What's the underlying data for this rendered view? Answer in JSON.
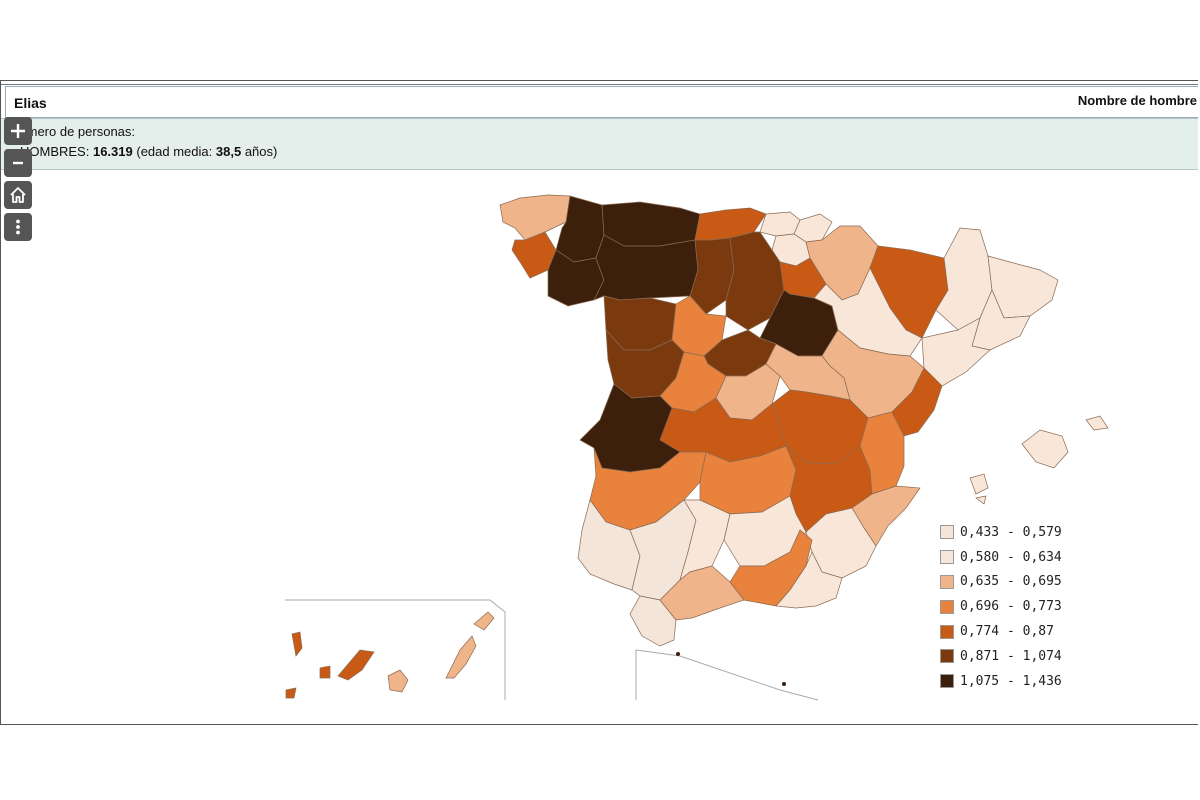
{
  "panel": {
    "title": "Elias",
    "subtitle": "Número de personas:",
    "sex_label": "HOMBRES:",
    "count": "16.319",
    "age_prefix": "(edad media:",
    "age": "38,5",
    "age_suffix": "años)"
  },
  "map": {
    "heading": "Nombre de hombre",
    "controls": {
      "zoom_in": "+",
      "zoom_out": "-",
      "home_icon": "home-icon",
      "more_icon": "more-vertical-icon"
    },
    "legend": [
      {
        "label": "0,433 - 0,579",
        "color": "#f4e5db"
      },
      {
        "label": "0,580 - 0,634",
        "color": "#f8e7d9"
      },
      {
        "label": "0,635 - 0,695",
        "color": "#f0b48a"
      },
      {
        "label": "0,696 - 0,773",
        "color": "#e8823d"
      },
      {
        "label": "0,774 - 0,87",
        "color": "#c95a16"
      },
      {
        "label": "0,871 - 1,074",
        "color": "#7a3a0e"
      },
      {
        "label": "1,075 - 1,436",
        "color": "#3d200c"
      }
    ],
    "border_color": "#8a6a52"
  }
}
